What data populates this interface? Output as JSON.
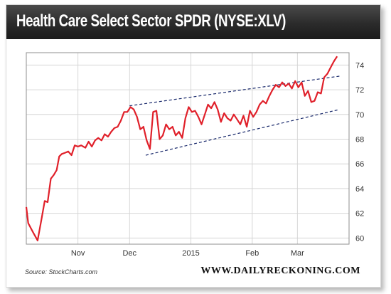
{
  "title": "Health Care Select Sector SPDR (NYSE:XLV)",
  "source": "Source: StockCharts.com",
  "brand": "WWW.DAILYRECKONING.COM",
  "colors": {
    "line": "#e0202a",
    "trend": "#1a2a6c",
    "grid": "#d6d6d6",
    "title_bg": "#2b2b2b"
  },
  "chart_data": {
    "type": "line",
    "title": "Health Care Select Sector SPDR (NYSE:XLV)",
    "xlabel": "",
    "ylabel": "",
    "xlim": [
      0,
      100
    ],
    "ylim": [
      59.5,
      75
    ],
    "x_ticks": [
      {
        "label": "Nov",
        "pos": 16
      },
      {
        "label": "Dec",
        "pos": 32
      },
      {
        "label": "2015",
        "pos": 51
      },
      {
        "label": "Feb",
        "pos": 70
      },
      {
        "label": "Mar",
        "pos": 84
      }
    ],
    "y_ticks": [
      60,
      62,
      64,
      66,
      68,
      70,
      72,
      74
    ],
    "grid": true,
    "series": [
      {
        "values": [
          [
            0,
            62.5
          ],
          [
            0.6,
            61.2
          ],
          [
            2,
            60.5
          ],
          [
            3.5,
            59.8
          ],
          [
            4.7,
            61.5
          ],
          [
            5.7,
            63.0
          ],
          [
            6.6,
            62.9
          ],
          [
            7.6,
            64.8
          ],
          [
            8.5,
            65.1
          ],
          [
            9.4,
            65.5
          ],
          [
            10.2,
            66.6
          ],
          [
            11,
            66.8
          ],
          [
            12,
            66.9
          ],
          [
            13,
            67.0
          ],
          [
            14,
            66.7
          ],
          [
            15,
            67.5
          ],
          [
            16,
            67.4
          ],
          [
            17,
            67.5
          ],
          [
            18.3,
            67.3
          ],
          [
            19.3,
            67.8
          ],
          [
            20.3,
            67.4
          ],
          [
            21.3,
            67.9
          ],
          [
            22.3,
            68.1
          ],
          [
            23.3,
            67.9
          ],
          [
            24.3,
            68.4
          ],
          [
            25.3,
            68.2
          ],
          [
            26.3,
            68.6
          ],
          [
            27.3,
            68.9
          ],
          [
            28.3,
            69.0
          ],
          [
            29.3,
            69.5
          ],
          [
            30.3,
            70.2
          ],
          [
            31.3,
            70.2
          ],
          [
            32.3,
            70.6
          ],
          [
            33.3,
            70.4
          ],
          [
            34.3,
            69.8
          ],
          [
            35.3,
            68.8
          ],
          [
            36.3,
            69.0
          ],
          [
            37.3,
            67.9
          ],
          [
            38.3,
            67.2
          ],
          [
            39.3,
            70.2
          ],
          [
            40.3,
            70.3
          ],
          [
            41.3,
            68.0
          ],
          [
            42.3,
            68.3
          ],
          [
            43.3,
            69.2
          ],
          [
            44.3,
            68.8
          ],
          [
            45.3,
            69.0
          ],
          [
            46.3,
            68.3
          ],
          [
            47.3,
            68.6
          ],
          [
            48.3,
            68.1
          ],
          [
            49.3,
            69.7
          ],
          [
            50.3,
            70.6
          ],
          [
            51.3,
            70.2
          ],
          [
            52.3,
            70.3
          ],
          [
            53.3,
            69.8
          ],
          [
            54.3,
            69.2
          ],
          [
            55.3,
            70.0
          ],
          [
            56.3,
            70.8
          ],
          [
            57.3,
            70.5
          ],
          [
            58.3,
            71.0
          ],
          [
            59.3,
            70.4
          ],
          [
            60.3,
            69.4
          ],
          [
            61.3,
            70.1
          ],
          [
            62.3,
            69.7
          ],
          [
            63.3,
            69.5
          ],
          [
            64.3,
            70.0
          ],
          [
            65.3,
            69.6
          ],
          [
            66.3,
            69.2
          ],
          [
            67.3,
            69.9
          ],
          [
            68.3,
            69.0
          ],
          [
            69.3,
            70.3
          ],
          [
            70.3,
            69.8
          ],
          [
            71.3,
            70.2
          ],
          [
            72.3,
            70.8
          ],
          [
            73.3,
            71.1
          ],
          [
            74.3,
            70.9
          ],
          [
            75.3,
            71.5
          ],
          [
            76.3,
            72.0
          ],
          [
            77.3,
            72.4
          ],
          [
            78.3,
            72.2
          ],
          [
            79.3,
            72.6
          ],
          [
            80.3,
            72.3
          ],
          [
            81.3,
            72.5
          ],
          [
            82.3,
            72.1
          ],
          [
            83.3,
            72.7
          ],
          [
            84.3,
            72.2
          ],
          [
            85.3,
            72.6
          ],
          [
            86.3,
            71.5
          ],
          [
            87.3,
            71.9
          ],
          [
            88.3,
            71.0
          ],
          [
            89.3,
            71.1
          ],
          [
            90.3,
            71.8
          ],
          [
            91.3,
            71.7
          ],
          [
            92.3,
            73.0
          ],
          [
            93.3,
            73.3
          ],
          [
            94.3,
            73.8
          ],
          [
            95.3,
            74.3
          ],
          [
            96.3,
            74.7
          ]
        ]
      }
    ],
    "trendlines": [
      {
        "from": [
          32,
          70.7
        ],
        "to": [
          97,
          73.1
        ]
      },
      {
        "from": [
          37,
          66.7
        ],
        "to": [
          97,
          70.4
        ]
      }
    ]
  }
}
